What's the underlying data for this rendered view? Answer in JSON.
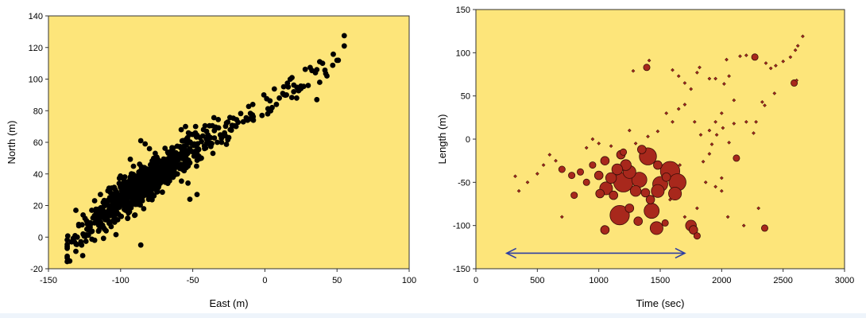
{
  "colors": {
    "plot_bg": "#fde57a",
    "page_bg": "#ffffff",
    "left_marker": "#000000",
    "right_marker_fill": "#a8281c",
    "right_marker_stroke": "#3a0d08",
    "arrow": "#2d3ea3"
  },
  "chart_data": [
    {
      "type": "scatter",
      "title": "",
      "xlabel": "East (m)",
      "ylabel": "North (m)",
      "xlim": [
        -150,
        100
      ],
      "ylim": [
        -20,
        140
      ],
      "xticks": [
        -150,
        -100,
        -50,
        0,
        50,
        100
      ],
      "yticks": [
        -20,
        0,
        20,
        40,
        60,
        80,
        100,
        120,
        140
      ],
      "xtick_labels": [
        "-150",
        "-100",
        "-50",
        "0",
        "50",
        "100"
      ],
      "ytick_labels": [
        "-20",
        "0",
        "20",
        "40",
        "60",
        "80",
        "100",
        "120",
        "140"
      ],
      "grid": false,
      "cluster": {
        "note": "dense elongated cloud of events (approx. 900 points) trending from (-137,-7) to (55,121)",
        "trend_points": [
          [
            -137,
            -7
          ],
          [
            -100,
            25
          ],
          [
            -80,
            35
          ],
          [
            -60,
            50
          ],
          [
            -40,
            60
          ],
          [
            -20,
            72
          ],
          [
            0,
            84
          ],
          [
            20,
            96
          ],
          [
            40,
            106
          ],
          [
            55,
            121
          ]
        ],
        "approx_count": 900
      },
      "points": [
        [
          55,
          121
        ],
        [
          36,
          106
        ],
        [
          38,
          111
        ],
        [
          40,
          110
        ],
        [
          35,
          104
        ],
        [
          43,
          102
        ],
        [
          38,
          98
        ],
        [
          30,
          96
        ],
        [
          25,
          94
        ],
        [
          20,
          92
        ],
        [
          22,
          88
        ],
        [
          15,
          90
        ],
        [
          10,
          88
        ],
        [
          8,
          84
        ],
        [
          4,
          80
        ],
        [
          2,
          78
        ],
        [
          -2,
          77
        ],
        [
          5,
          82
        ],
        [
          36,
          87
        ],
        [
          -8,
          74
        ],
        [
          -12,
          74
        ],
        [
          -15,
          73
        ],
        [
          -20,
          70
        ],
        [
          -24,
          68
        ],
        [
          -28,
          66
        ],
        [
          -25,
          63
        ],
        [
          -30,
          60
        ],
        [
          -33,
          60
        ],
        [
          -40,
          62
        ],
        [
          -45,
          63
        ],
        [
          -50,
          65
        ],
        [
          -53,
          66
        ],
        [
          -58,
          68
        ],
        [
          -55,
          70
        ],
        [
          -48,
          70
        ],
        [
          -36,
          53
        ],
        [
          -44,
          50
        ],
        [
          -52,
          47
        ],
        [
          -57,
          43
        ],
        [
          -60,
          49
        ],
        [
          -67,
          45
        ],
        [
          -70,
          41
        ],
        [
          -73,
          48
        ],
        [
          -76,
          53
        ],
        [
          -80,
          56
        ],
        [
          -83,
          59
        ],
        [
          -86,
          61
        ],
        [
          -78,
          39
        ],
        [
          -88,
          31
        ],
        [
          -92,
          28
        ],
        [
          -96,
          25
        ],
        [
          -100,
          22
        ],
        [
          -104,
          18
        ],
        [
          -110,
          14
        ],
        [
          -115,
          12
        ],
        [
          -118,
          9
        ],
        [
          -122,
          5
        ],
        [
          -126,
          2
        ],
        [
          -130,
          0
        ],
        [
          -134,
          -3
        ],
        [
          -137,
          -6
        ],
        [
          -131,
          -9
        ],
        [
          -127,
          -5
        ],
        [
          -120,
          17
        ],
        [
          -118,
          23
        ],
        [
          -114,
          27
        ],
        [
          -108,
          31
        ],
        [
          -102,
          11
        ],
        [
          -95,
          12
        ],
        [
          -90,
          14
        ],
        [
          -84,
          18
        ],
        [
          -47,
          27
        ],
        [
          -52,
          24
        ],
        [
          -86,
          -5
        ],
        [
          -131,
          17
        ],
        [
          -126,
          14
        ],
        [
          -118,
          -2
        ],
        [
          -110,
          4
        ]
      ]
    },
    {
      "type": "scatter",
      "subtype": "bubble",
      "title": "",
      "xlabel": "Time (sec)",
      "ylabel": "Length (m)",
      "xlim": [
        0,
        3000
      ],
      "ylim": [
        -150,
        150
      ],
      "xticks": [
        0,
        500,
        1000,
        1500,
        2000,
        2500,
        3000
      ],
      "yticks": [
        -150,
        -100,
        -50,
        0,
        50,
        100,
        150
      ],
      "xtick_labels": [
        "0",
        "500",
        "1000",
        "1500",
        "2000",
        "2500",
        "3000"
      ],
      "ytick_labels": [
        "-150",
        "-100",
        "-50",
        "0",
        "50",
        "100",
        "150"
      ],
      "grid": false,
      "annotation": {
        "type": "double-arrow",
        "x_start": 250,
        "x_end": 1700,
        "y": -132
      },
      "points": [
        [
          1580,
          -37,
          9
        ],
        [
          1400,
          -20,
          8
        ],
        [
          1640,
          -50,
          8
        ],
        [
          1200,
          -50,
          9
        ],
        [
          1170,
          -88,
          9
        ],
        [
          1430,
          -83,
          7
        ],
        [
          1500,
          -52,
          7
        ],
        [
          1480,
          -60,
          6
        ],
        [
          1620,
          -63,
          6
        ],
        [
          1470,
          -103,
          6
        ],
        [
          1330,
          -47,
          7
        ],
        [
          1250,
          -38,
          6
        ],
        [
          1100,
          -45,
          5
        ],
        [
          1060,
          -57,
          6
        ],
        [
          1300,
          -60,
          5
        ],
        [
          1220,
          -30,
          5
        ],
        [
          1150,
          -35,
          5
        ],
        [
          1000,
          -42,
          4
        ],
        [
          1050,
          -25,
          4
        ],
        [
          1180,
          -18,
          4
        ],
        [
          1350,
          -12,
          4
        ],
        [
          1480,
          -30,
          4
        ],
        [
          1550,
          -44,
          4
        ],
        [
          1750,
          -100,
          5
        ],
        [
          1770,
          -105,
          4
        ],
        [
          1800,
          -112,
          3
        ],
        [
          1010,
          -63,
          4
        ],
        [
          1120,
          -65,
          4
        ],
        [
          1380,
          -62,
          4
        ],
        [
          1420,
          -70,
          4
        ],
        [
          1250,
          -80,
          4
        ],
        [
          1320,
          -95,
          4
        ],
        [
          1050,
          -105,
          4
        ],
        [
          1540,
          -97,
          3
        ],
        [
          800,
          -65,
          3
        ],
        [
          900,
          -50,
          3
        ],
        [
          950,
          -30,
          3
        ],
        [
          850,
          -38,
          3
        ],
        [
          780,
          -42,
          3
        ],
        [
          700,
          -35,
          3
        ],
        [
          650,
          -25,
          2
        ],
        [
          600,
          -18,
          2
        ],
        [
          550,
          -30,
          2
        ],
        [
          500,
          -40,
          2
        ],
        [
          420,
          -50,
          2
        ],
        [
          350,
          -60,
          2
        ],
        [
          320,
          -43,
          2
        ],
        [
          900,
          -10,
          2
        ],
        [
          950,
          0,
          2
        ],
        [
          1000,
          -5,
          2
        ],
        [
          1100,
          -8,
          2
        ],
        [
          1200,
          -15,
          3
        ],
        [
          1300,
          -5,
          2
        ],
        [
          1250,
          10,
          2
        ],
        [
          1400,
          3,
          2
        ],
        [
          1480,
          9,
          2
        ],
        [
          1550,
          30,
          2
        ],
        [
          1600,
          20,
          2
        ],
        [
          1650,
          35,
          2
        ],
        [
          1700,
          40,
          2
        ],
        [
          1780,
          20,
          2
        ],
        [
          1830,
          5,
          2
        ],
        [
          1900,
          10,
          2
        ],
        [
          1950,
          20,
          2
        ],
        [
          2000,
          30,
          2
        ],
        [
          1650,
          73,
          2
        ],
        [
          1800,
          77,
          2
        ],
        [
          1820,
          83,
          2
        ],
        [
          1390,
          83,
          3
        ],
        [
          1410,
          91,
          2
        ],
        [
          1280,
          79,
          2
        ],
        [
          1600,
          80,
          2
        ],
        [
          1700,
          65,
          2
        ],
        [
          1750,
          58,
          2
        ],
        [
          1900,
          70,
          2
        ],
        [
          1950,
          70,
          2
        ],
        [
          2020,
          64,
          2
        ],
        [
          2040,
          92,
          2
        ],
        [
          2060,
          73,
          2
        ],
        [
          2150,
          96,
          2
        ],
        [
          2200,
          97,
          2
        ],
        [
          2270,
          95,
          3
        ],
        [
          2360,
          88,
          2
        ],
        [
          2400,
          82,
          2
        ],
        [
          2440,
          85,
          2
        ],
        [
          2500,
          90,
          2
        ],
        [
          2560,
          95,
          2
        ],
        [
          2600,
          103,
          2
        ],
        [
          2620,
          108,
          2
        ],
        [
          2660,
          119,
          2
        ],
        [
          2590,
          65,
          3
        ],
        [
          2610,
          68,
          2
        ],
        [
          2430,
          53,
          2
        ],
        [
          2350,
          39,
          2
        ],
        [
          2330,
          43,
          2
        ],
        [
          2100,
          45,
          2
        ],
        [
          2200,
          20,
          2
        ],
        [
          2120,
          -22,
          3
        ],
        [
          2260,
          7,
          2
        ],
        [
          2280,
          20,
          2
        ],
        [
          1870,
          -50,
          2
        ],
        [
          1950,
          -55,
          2
        ],
        [
          2000,
          -60,
          2
        ],
        [
          2050,
          -90,
          2
        ],
        [
          2180,
          -100,
          2
        ],
        [
          2350,
          -103,
          3
        ],
        [
          2300,
          -80,
          2
        ],
        [
          2000,
          -45,
          2
        ],
        [
          1850,
          -26,
          2
        ],
        [
          1900,
          -17,
          2
        ],
        [
          1920,
          -6,
          2
        ],
        [
          1960,
          5,
          2
        ],
        [
          2010,
          13,
          2
        ],
        [
          2060,
          -4,
          2
        ],
        [
          2100,
          18,
          2
        ],
        [
          700,
          -90,
          2
        ],
        [
          1800,
          -80,
          2
        ],
        [
          1700,
          -90,
          2
        ],
        [
          1660,
          -30,
          2
        ],
        [
          1580,
          -70,
          2
        ]
      ]
    }
  ]
}
